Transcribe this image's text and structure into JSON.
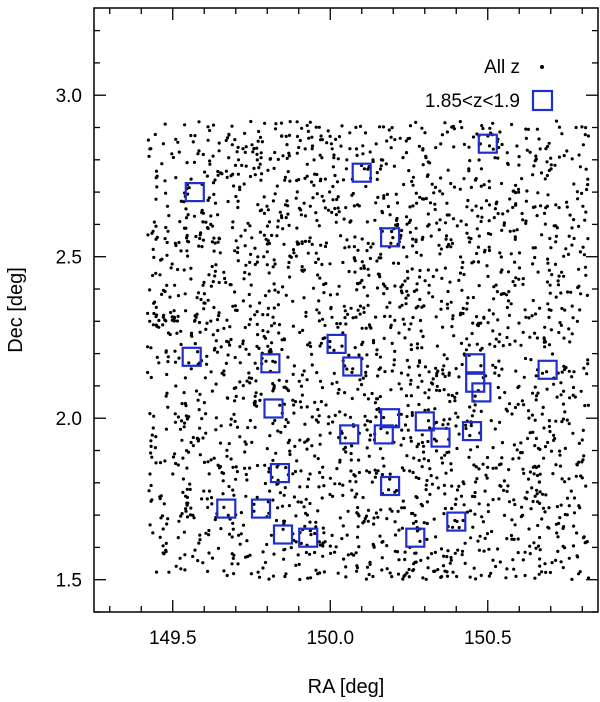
{
  "chart_data": {
    "type": "scatter",
    "xlabel": "RA [deg]",
    "ylabel": "Dec [deg]",
    "xlim": [
      149.25,
      150.85
    ],
    "ylim": [
      1.4,
      3.27
    ],
    "x_invert": false,
    "x_ticks": [
      149.5,
      150.0,
      150.5
    ],
    "x_tick_labels": [
      "149.5",
      "150.0",
      "150.5"
    ],
    "y_ticks": [
      1.5,
      2.0,
      2.5,
      3.0
    ],
    "y_tick_labels": [
      "1.5",
      "2.0",
      "2.5",
      "3.0"
    ],
    "x_minor_step": 0.1,
    "y_minor_step": 0.1,
    "grid": false,
    "legend_position": "top-right",
    "colors": {
      "all": "#000000",
      "selected": "#1f2fcf"
    },
    "background_series": {
      "name": "All z",
      "marker": "dot",
      "region": {
        "ra": [
          149.42,
          150.82
        ],
        "dec": [
          1.5,
          2.92
        ]
      },
      "count": 2400,
      "seed": 12345
    },
    "series": [
      {
        "name": "1.85<z<1.9",
        "marker": "open-square",
        "points": [
          {
            "x": 149.57,
            "y": 2.7
          },
          {
            "x": 150.1,
            "y": 2.76
          },
          {
            "x": 150.5,
            "y": 2.85
          },
          {
            "x": 150.19,
            "y": 2.56
          },
          {
            "x": 149.56,
            "y": 2.19
          },
          {
            "x": 149.81,
            "y": 2.17
          },
          {
            "x": 150.02,
            "y": 2.23
          },
          {
            "x": 150.07,
            "y": 2.16
          },
          {
            "x": 150.46,
            "y": 2.17
          },
          {
            "x": 150.46,
            "y": 2.11
          },
          {
            "x": 150.48,
            "y": 2.08
          },
          {
            "x": 150.69,
            "y": 2.15
          },
          {
            "x": 149.82,
            "y": 2.03
          },
          {
            "x": 150.19,
            "y": 2.0
          },
          {
            "x": 150.3,
            "y": 1.99
          },
          {
            "x": 150.06,
            "y": 1.95
          },
          {
            "x": 150.17,
            "y": 1.95
          },
          {
            "x": 150.35,
            "y": 1.94
          },
          {
            "x": 150.45,
            "y": 1.96
          },
          {
            "x": 149.84,
            "y": 1.83
          },
          {
            "x": 150.19,
            "y": 1.79
          },
          {
            "x": 149.67,
            "y": 1.72
          },
          {
            "x": 149.78,
            "y": 1.72
          },
          {
            "x": 149.85,
            "y": 1.64
          },
          {
            "x": 149.93,
            "y": 1.63
          },
          {
            "x": 150.27,
            "y": 1.63
          },
          {
            "x": 150.4,
            "y": 1.68
          }
        ]
      }
    ]
  }
}
